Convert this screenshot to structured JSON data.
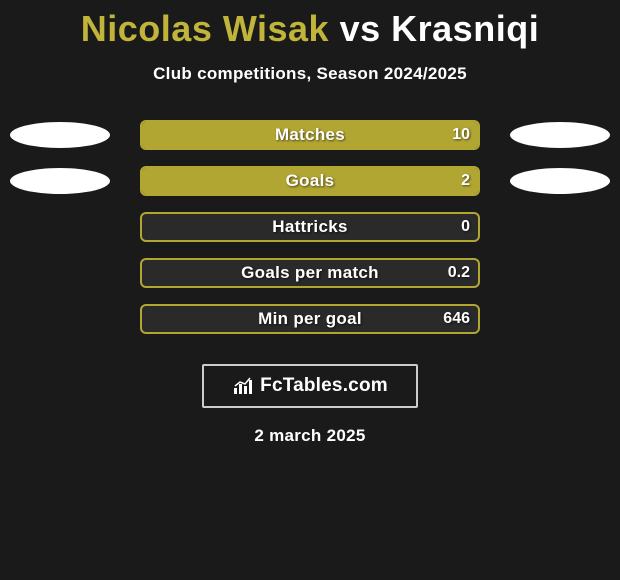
{
  "title": {
    "player1": "Nicolas Wisak",
    "vs": "vs",
    "player2": "Krasniqi"
  },
  "subtitle": "Club competitions, Season 2024/2025",
  "colors": {
    "p1": "#b2a633",
    "p2": "#ffffff",
    "bar_border": "#b2a633",
    "bar_bg": "#2a2a2a"
  },
  "rows": [
    {
      "label": "Matches",
      "left_value": "",
      "right_value": "10",
      "left_fill_pct": 0,
      "right_fill_pct": 100,
      "fill_color": "#b2a633",
      "show_ellipse_left": true,
      "show_ellipse_right": true
    },
    {
      "label": "Goals",
      "left_value": "",
      "right_value": "2",
      "left_fill_pct": 0,
      "right_fill_pct": 100,
      "fill_color": "#b2a633",
      "show_ellipse_left": true,
      "show_ellipse_right": true
    },
    {
      "label": "Hattricks",
      "left_value": "",
      "right_value": "0",
      "left_fill_pct": 0,
      "right_fill_pct": 0,
      "fill_color": "#b2a633",
      "show_ellipse_left": false,
      "show_ellipse_right": false
    },
    {
      "label": "Goals per match",
      "left_value": "",
      "right_value": "0.2",
      "left_fill_pct": 0,
      "right_fill_pct": 0,
      "fill_color": "#b2a633",
      "show_ellipse_left": false,
      "show_ellipse_right": false
    },
    {
      "label": "Min per goal",
      "left_value": "",
      "right_value": "646",
      "left_fill_pct": 0,
      "right_fill_pct": 0,
      "fill_color": "#b2a633",
      "show_ellipse_left": false,
      "show_ellipse_right": false
    }
  ],
  "logo_text": "FcTables.com",
  "date": "2 march 2025"
}
